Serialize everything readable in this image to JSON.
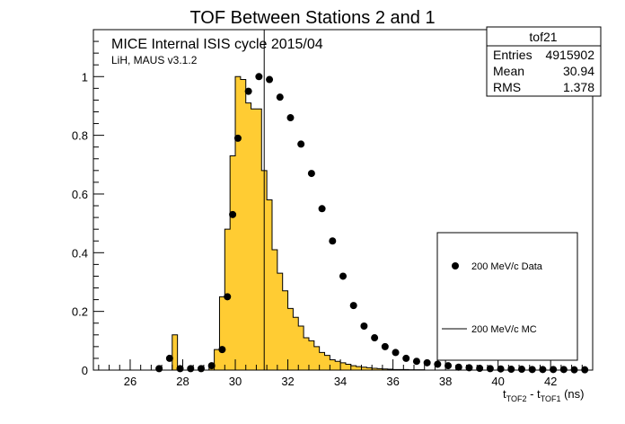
{
  "chart_data": {
    "type": "bar",
    "title": "TOF Between Stations 2 and 1",
    "annotations": [
      "MICE Internal ISIS cycle 2015/04",
      "LiH, MAUS v3.1.2"
    ],
    "xlabel": {
      "t1": "t",
      "s1": "TOF2",
      "mid": " - t",
      "s2": "TOF1",
      "unit": " (ns)"
    },
    "xlim": [
      24.6,
      43.6
    ],
    "ylim": [
      0,
      1.16
    ],
    "xticks": [
      26,
      28,
      30,
      32,
      34,
      36,
      38,
      40,
      42
    ],
    "yticks": [
      0,
      0.2,
      0.4,
      0.6,
      0.8,
      1
    ],
    "grid": false,
    "stats_box": {
      "title": "tof21",
      "rows": [
        {
          "label": "Entries",
          "value": "4915902"
        },
        {
          "label": "Mean",
          "value": "30.94"
        },
        {
          "label": "RMS",
          "value": "1.378"
        }
      ]
    },
    "legend": {
      "position": "right",
      "entries": [
        {
          "label": "200 MeV/c Data",
          "style": "marker"
        },
        {
          "label": "200 MeV/c MC",
          "style": "line"
        }
      ]
    },
    "mc_vertical_line_x": 31.1,
    "fill_color": "#ffcc33",
    "series": [
      {
        "name": "200 MeV/c MC",
        "kind": "histogram",
        "bin_width": 0.2,
        "x_start": 27.2,
        "values": [
          0.0,
          0.0,
          0.12,
          0.01,
          0.0,
          0.0,
          0.0,
          0.0,
          0.0,
          0.01,
          0.07,
          0.25,
          0.48,
          0.73,
          1.0,
          0.99,
          0.91,
          0.89,
          0.89,
          0.68,
          0.58,
          0.41,
          0.33,
          0.27,
          0.21,
          0.18,
          0.15,
          0.11,
          0.1,
          0.08,
          0.06,
          0.05,
          0.035,
          0.03,
          0.025,
          0.02,
          0.015,
          0.012,
          0.01,
          0.008,
          0.006,
          0.005,
          0.004,
          0.003,
          0.002,
          0.002,
          0.002,
          0.001,
          0.001,
          0.001,
          0.0,
          0.0,
          0.0,
          0.0,
          0.0,
          0.0,
          0.0,
          0.0,
          0.0,
          0.0,
          0.0,
          0.0,
          0.0,
          0.0,
          0.0,
          0.0,
          0.0,
          0.0,
          0.0,
          0.0,
          0.0,
          0.0,
          0.0,
          0.0,
          0.0,
          0.0,
          0.0,
          0.0,
          0.0,
          0.0,
          0.0
        ]
      },
      {
        "name": "200 MeV/c Data",
        "kind": "markers",
        "x": [
          27.1,
          27.5,
          27.9,
          28.3,
          28.7,
          29.1,
          29.5,
          29.7,
          29.9,
          30.1,
          30.5,
          30.9,
          31.3,
          31.7,
          32.1,
          32.5,
          32.9,
          33.3,
          33.7,
          34.1,
          34.5,
          34.9,
          35.3,
          35.7,
          36.1,
          36.5,
          36.9,
          37.3,
          37.7,
          38.1,
          38.5,
          38.9,
          39.3,
          39.7,
          40.1,
          40.5,
          40.9,
          41.3,
          41.7,
          42.1,
          42.5,
          42.9,
          43.3
        ],
        "y": [
          0.005,
          0.04,
          0.005,
          0.005,
          0.005,
          0.015,
          0.07,
          0.25,
          0.53,
          0.79,
          0.95,
          1.0,
          0.99,
          0.93,
          0.86,
          0.77,
          0.67,
          0.55,
          0.44,
          0.32,
          0.22,
          0.15,
          0.11,
          0.08,
          0.06,
          0.04,
          0.03,
          0.025,
          0.02,
          0.015,
          0.01,
          0.008,
          0.006,
          0.005,
          0.004,
          0.003,
          0.003,
          0.002,
          0.002,
          0.002,
          0.002,
          0.001,
          0.001
        ]
      }
    ]
  }
}
